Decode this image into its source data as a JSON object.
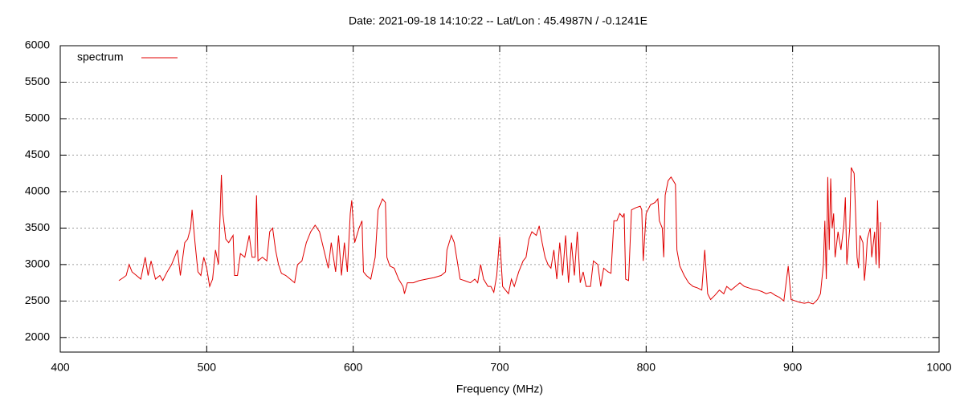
{
  "chart_data": {
    "type": "line",
    "title": "Date: 2021-09-18 14:10:22  --  Lat/Lon : 45.4987N / -0.1241E",
    "xlabel": "Frequency (MHz)",
    "x": [
      440,
      443,
      445,
      447,
      449,
      452,
      455,
      458,
      460,
      462,
      465,
      468,
      470,
      473,
      476,
      478,
      480,
      482,
      485,
      487,
      489,
      490,
      492,
      494,
      496,
      498,
      500,
      502,
      504,
      506,
      508,
      509,
      510,
      511,
      513,
      515,
      518,
      519,
      521,
      523,
      526,
      529,
      531,
      533,
      534,
      535,
      538,
      541,
      543,
      545,
      547,
      549,
      551,
      554,
      557,
      560,
      562,
      565,
      568,
      571,
      574,
      577,
      580,
      583,
      585,
      588,
      590,
      592,
      594,
      596,
      598,
      599,
      601,
      604,
      606,
      607,
      609,
      612,
      615,
      617,
      620,
      622,
      623,
      625,
      628,
      631,
      634,
      635,
      637,
      641,
      645,
      650,
      655,
      660,
      663,
      664,
      667,
      669,
      671,
      673,
      676,
      680,
      683,
      685,
      687,
      689,
      692,
      694,
      696,
      698,
      700,
      702,
      704,
      706,
      708,
      710,
      713,
      716,
      718,
      720,
      722,
      725,
      727,
      729,
      731,
      733,
      735,
      737,
      739,
      741,
      743,
      745,
      747,
      749,
      751,
      753,
      755,
      757,
      759,
      762,
      764,
      767,
      769,
      771,
      774,
      776,
      778,
      780,
      782,
      784,
      785,
      786,
      788,
      790,
      793,
      796,
      797,
      798,
      800,
      803,
      806,
      808,
      809,
      811,
      812,
      813,
      815,
      817,
      820,
      821,
      823,
      826,
      829,
      832,
      835,
      838,
      840,
      842,
      844,
      847,
      850,
      853,
      855,
      858,
      861,
      864,
      867,
      870,
      873,
      876,
      879,
      882,
      885,
      888,
      891,
      894,
      897,
      899,
      902,
      905,
      908,
      911,
      914,
      917,
      919,
      921,
      922,
      923,
      924,
      925,
      926,
      927,
      928,
      929,
      931,
      933,
      935,
      936,
      937,
      939,
      940,
      942,
      943,
      944,
      945,
      946,
      948,
      949,
      950,
      951,
      953,
      954,
      956,
      957,
      958,
      959,
      960
    ],
    "series": [
      {
        "name": "spectrum",
        "color": "#e00000",
        "values": [
          2780,
          2820,
          2850,
          3000,
          2900,
          2850,
          2800,
          3100,
          2850,
          3050,
          2800,
          2850,
          2780,
          2900,
          3000,
          3100,
          3200,
          2850,
          3300,
          3350,
          3500,
          3750,
          3300,
          2900,
          2850,
          3100,
          2950,
          2700,
          2800,
          3200,
          3000,
          3600,
          4230,
          3700,
          3350,
          3300,
          3400,
          2850,
          2850,
          3150,
          3100,
          3400,
          3100,
          3100,
          3950,
          3050,
          3100,
          3050,
          3450,
          3500,
          3200,
          3000,
          2880,
          2850,
          2800,
          2750,
          3000,
          3050,
          3300,
          3450,
          3540,
          3450,
          3200,
          2950,
          3300,
          2900,
          3400,
          2850,
          3300,
          2900,
          3700,
          3880,
          3300,
          3500,
          3600,
          2900,
          2850,
          2800,
          3100,
          3750,
          3900,
          3850,
          3100,
          2980,
          2950,
          2800,
          2700,
          2600,
          2750,
          2750,
          2780,
          2800,
          2820,
          2850,
          2900,
          3200,
          3400,
          3300,
          3050,
          2800,
          2780,
          2750,
          2800,
          2750,
          3000,
          2800,
          2700,
          2700,
          2620,
          2850,
          3380,
          2700,
          2650,
          2600,
          2800,
          2700,
          2900,
          3050,
          3100,
          3350,
          3450,
          3400,
          3530,
          3300,
          3100,
          3000,
          2950,
          3200,
          2800,
          3300,
          2850,
          3400,
          2750,
          3300,
          2850,
          3450,
          2750,
          2900,
          2700,
          2700,
          3050,
          3000,
          2700,
          2950,
          2900,
          2880,
          3600,
          3600,
          3700,
          3650,
          3700,
          2800,
          2780,
          3750,
          3780,
          3800,
          3750,
          3050,
          3700,
          3820,
          3850,
          3900,
          3600,
          3500,
          3100,
          3950,
          4150,
          4200,
          4100,
          3200,
          2980,
          2850,
          2750,
          2700,
          2680,
          2650,
          3200,
          2600,
          2520,
          2580,
          2650,
          2600,
          2700,
          2650,
          2700,
          2750,
          2700,
          2680,
          2660,
          2650,
          2630,
          2600,
          2620,
          2580,
          2550,
          2500,
          2980,
          2520,
          2500,
          2480,
          2470,
          2480,
          2460,
          2520,
          2600,
          3000,
          3600,
          2800,
          4200,
          3200,
          4180,
          3500,
          3700,
          3100,
          3450,
          3200,
          3550,
          3920,
          3000,
          3500,
          4330,
          4250,
          3700,
          3100,
          2950,
          3400,
          3300,
          2780,
          3000,
          3350,
          3500,
          3100,
          3450,
          3000,
          3880,
          2950,
          3580
        ]
      }
    ],
    "xlim": [
      400,
      1000
    ],
    "ylim": [
      1800,
      6000
    ],
    "xticks": [
      400,
      500,
      600,
      700,
      800,
      900,
      1000
    ],
    "yticks": [
      2000,
      2500,
      3000,
      3500,
      4000,
      4500,
      5000,
      5500,
      6000
    ],
    "grid": true,
    "legend": "top-left"
  }
}
